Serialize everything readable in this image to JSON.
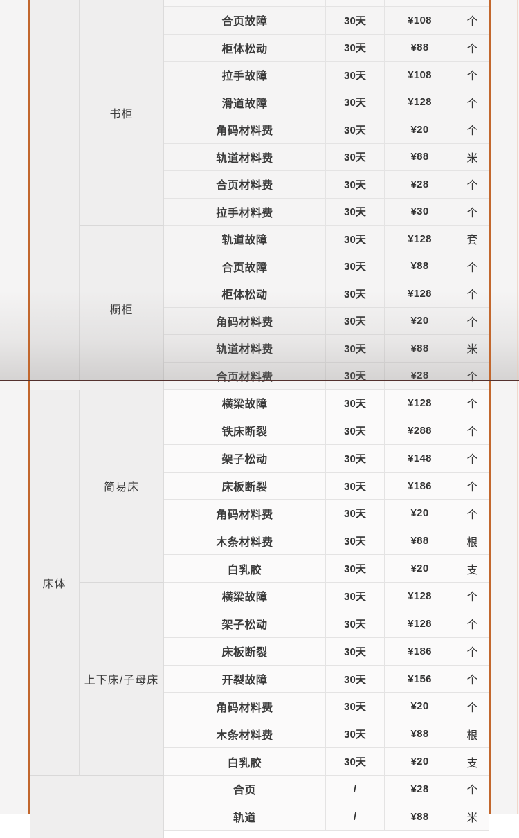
{
  "page": {
    "bg": "#f5f4f4",
    "accent_color": "#c2672d",
    "seam_color": "#54312e"
  },
  "table": {
    "sections": [
      {
        "category": "",
        "groups": [
          {
            "label": "书柜",
            "rows": [
              {
                "fault": "合页故障",
                "warranty": "30天",
                "price": "¥108",
                "unit": "个"
              },
              {
                "fault": "柜体松动",
                "warranty": "30天",
                "price": "¥88",
                "unit": "个"
              },
              {
                "fault": "拉手故障",
                "warranty": "30天",
                "price": "¥108",
                "unit": "个"
              },
              {
                "fault": "滑道故障",
                "warranty": "30天",
                "price": "¥128",
                "unit": "个"
              },
              {
                "fault": "角码材料费",
                "warranty": "30天",
                "price": "¥20",
                "unit": "个"
              },
              {
                "fault": "轨道材料费",
                "warranty": "30天",
                "price": "¥88",
                "unit": "米"
              },
              {
                "fault": "合页材料费",
                "warranty": "30天",
                "price": "¥28",
                "unit": "个"
              },
              {
                "fault": "拉手材料费",
                "warranty": "30天",
                "price": "¥30",
                "unit": "个"
              }
            ]
          },
          {
            "label": "橱柜",
            "rows": [
              {
                "fault": "轨道故障",
                "warranty": "30天",
                "price": "¥128",
                "unit": "套"
              },
              {
                "fault": "合页故障",
                "warranty": "30天",
                "price": "¥88",
                "unit": "个"
              },
              {
                "fault": "柜体松动",
                "warranty": "30天",
                "price": "¥128",
                "unit": "个"
              },
              {
                "fault": "角码材料费",
                "warranty": "30天",
                "price": "¥20",
                "unit": "个"
              },
              {
                "fault": "轨道材料费",
                "warranty": "30天",
                "price": "¥88",
                "unit": "米"
              },
              {
                "fault": "合页材料费",
                "warranty": "30天",
                "price": "¥28",
                "unit": "个"
              }
            ]
          }
        ]
      },
      {
        "category": "床体",
        "groups": [
          {
            "label": "简易床",
            "rows": [
              {
                "fault": "横梁故障",
                "warranty": "30天",
                "price": "¥128",
                "unit": "个"
              },
              {
                "fault": "铁床断裂",
                "warranty": "30天",
                "price": "¥288",
                "unit": "个"
              },
              {
                "fault": "架子松动",
                "warranty": "30天",
                "price": "¥148",
                "unit": "个"
              },
              {
                "fault": "床板断裂",
                "warranty": "30天",
                "price": "¥186",
                "unit": "个"
              },
              {
                "fault": "角码材料费",
                "warranty": "30天",
                "price": "¥20",
                "unit": "个"
              },
              {
                "fault": "木条材料费",
                "warranty": "30天",
                "price": "¥88",
                "unit": "根"
              },
              {
                "fault": "白乳胶",
                "warranty": "30天",
                "price": "¥20",
                "unit": "支"
              }
            ]
          },
          {
            "label": "上下床/子母床",
            "rows": [
              {
                "fault": "横梁故障",
                "warranty": "30天",
                "price": "¥128",
                "unit": "个"
              },
              {
                "fault": "架子松动",
                "warranty": "30天",
                "price": "¥128",
                "unit": "个"
              },
              {
                "fault": "床板断裂",
                "warranty": "30天",
                "price": "¥186",
                "unit": "个"
              },
              {
                "fault": "开裂故障",
                "warranty": "30天",
                "price": "¥156",
                "unit": "个"
              },
              {
                "fault": "角码材料费",
                "warranty": "30天",
                "price": "¥20",
                "unit": "个"
              },
              {
                "fault": "木条材料费",
                "warranty": "30天",
                "price": "¥88",
                "unit": "根"
              },
              {
                "fault": "白乳胶",
                "warranty": "30天",
                "price": "¥20",
                "unit": "支"
              }
            ]
          }
        ]
      },
      {
        "category": "",
        "groups": [
          {
            "label": "",
            "rows": [
              {
                "fault": "合页",
                "warranty": "/",
                "price": "¥28",
                "unit": "个"
              },
              {
                "fault": "轨道",
                "warranty": "/",
                "price": "¥88",
                "unit": "米"
              }
            ]
          }
        ]
      }
    ]
  }
}
